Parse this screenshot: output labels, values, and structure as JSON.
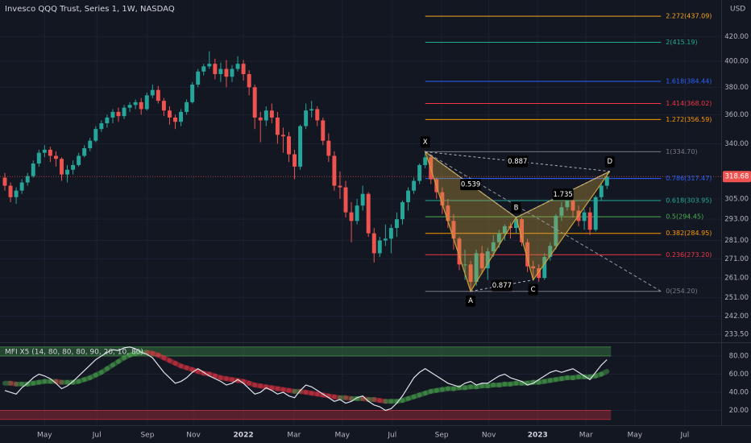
{
  "chart_data": {
    "type": "candlestick",
    "title": "Invesco QQQ Trust, Series 1, 1W, NASDAQ",
    "currency": "USD",
    "log_scale": true,
    "grid": true,
    "up_color": "#26a69a",
    "down_color": "#ef5350",
    "xlim": [
      -0.85,
      126.1
    ],
    "xticks": [
      {
        "value": 7,
        "label": "May"
      },
      {
        "value": 16.2,
        "label": "Jul"
      },
      {
        "value": 25.1,
        "label": "Sep"
      },
      {
        "value": 33.2,
        "label": "Nov"
      },
      {
        "value": 42,
        "label": "2022"
      },
      {
        "value": 50.9,
        "label": "Mar"
      },
      {
        "value": 59.4,
        "label": "May"
      },
      {
        "value": 68.2,
        "label": "Jul"
      },
      {
        "value": 76.9,
        "label": "Sep"
      },
      {
        "value": 85.2,
        "label": "Nov"
      },
      {
        "value": 93.8,
        "label": "2023"
      },
      {
        "value": 102.3,
        "label": "Mar"
      },
      {
        "value": 110.9,
        "label": "May"
      },
      {
        "value": 119.7,
        "label": "Jul"
      }
    ],
    "ylim": [
      229.9,
      451.3
    ],
    "yticks": [
      {
        "value": 420,
        "label": "420.00"
      },
      {
        "value": 400,
        "label": "400.00"
      },
      {
        "value": 380,
        "label": "380.00"
      },
      {
        "value": 360,
        "label": "360.00"
      },
      {
        "value": 340,
        "label": "340.00"
      },
      {
        "value": 305,
        "label": "305.00"
      },
      {
        "value": 293,
        "label": "293.00"
      },
      {
        "value": 281,
        "label": "281.00"
      },
      {
        "value": 271,
        "label": "271.00"
      },
      {
        "value": 261,
        "label": "261.00"
      },
      {
        "value": 251,
        "label": "251.00"
      },
      {
        "value": 242,
        "label": "242.00"
      },
      {
        "value": 233.5,
        "label": "233.50"
      }
    ],
    "ohlc": [
      [
        318,
        321,
        310,
        313
      ],
      [
        313,
        315,
        303,
        306
      ],
      [
        306,
        312,
        302,
        310
      ],
      [
        310,
        317,
        308,
        315
      ],
      [
        315,
        321,
        313,
        319
      ],
      [
        319,
        329,
        318,
        327
      ],
      [
        327,
        336,
        325,
        334
      ],
      [
        334,
        339,
        331,
        336
      ],
      [
        336,
        338,
        328,
        332
      ],
      [
        332,
        335,
        325,
        330
      ],
      [
        330,
        331,
        316,
        320
      ],
      [
        320,
        326,
        315,
        323
      ],
      [
        323,
        329,
        320,
        326
      ],
      [
        326,
        334,
        325,
        332
      ],
      [
        332,
        339,
        331,
        337
      ],
      [
        337,
        344,
        335,
        342
      ],
      [
        342,
        352,
        341,
        350
      ],
      [
        350,
        356,
        348,
        354
      ],
      [
        354,
        360,
        351,
        358
      ],
      [
        358,
        364,
        354,
        362
      ],
      [
        362,
        365,
        355,
        359
      ],
      [
        359,
        367,
        357,
        365
      ],
      [
        365,
        369,
        362,
        367
      ],
      [
        367,
        371,
        364,
        369
      ],
      [
        369,
        372,
        360,
        364
      ],
      [
        364,
        376,
        363,
        374
      ],
      [
        374,
        382,
        372,
        378
      ],
      [
        378,
        381,
        368,
        370
      ],
      [
        370,
        372,
        359,
        363
      ],
      [
        363,
        366,
        353,
        358
      ],
      [
        358,
        360,
        350,
        355
      ],
      [
        355,
        364,
        352,
        362
      ],
      [
        362,
        371,
        360,
        369
      ],
      [
        369,
        384,
        368,
        382
      ],
      [
        382,
        394,
        380,
        392
      ],
      [
        392,
        398,
        389,
        396
      ],
      [
        396,
        408,
        394,
        398
      ],
      [
        398,
        402,
        386,
        390
      ],
      [
        390,
        399,
        384,
        394
      ],
      [
        394,
        401,
        380,
        388
      ],
      [
        388,
        397,
        384,
        394
      ],
      [
        394,
        404,
        392,
        398
      ],
      [
        398,
        401,
        385,
        390
      ],
      [
        390,
        393,
        374,
        380
      ],
      [
        380,
        382,
        350,
        358
      ],
      [
        358,
        362,
        341,
        356
      ],
      [
        356,
        366,
        352,
        363
      ],
      [
        363,
        368,
        354,
        358
      ],
      [
        358,
        362,
        340,
        346
      ],
      [
        346,
        351,
        334,
        345
      ],
      [
        345,
        348,
        328,
        333
      ],
      [
        333,
        336,
        317,
        325
      ],
      [
        325,
        353,
        323,
        352
      ],
      [
        352,
        368,
        350,
        363
      ],
      [
        363,
        370,
        358,
        364
      ],
      [
        364,
        366,
        352,
        356
      ],
      [
        356,
        358,
        339,
        342
      ],
      [
        342,
        347,
        328,
        332
      ],
      [
        332,
        335,
        310,
        313
      ],
      [
        313,
        322,
        305,
        312
      ],
      [
        312,
        316,
        294,
        297
      ],
      [
        297,
        303,
        280,
        292
      ],
      [
        292,
        305,
        290,
        301
      ],
      [
        301,
        313,
        298,
        308
      ],
      [
        308,
        309,
        283,
        285
      ],
      [
        285,
        288,
        269,
        274
      ],
      [
        274,
        283,
        272,
        281
      ],
      [
        281,
        290,
        278,
        282
      ],
      [
        282,
        290,
        274,
        288
      ],
      [
        288,
        297,
        283,
        293
      ],
      [
        293,
        304,
        290,
        303
      ],
      [
        303,
        312,
        298,
        310
      ],
      [
        310,
        318,
        308,
        316
      ],
      [
        316,
        327,
        314,
        326
      ],
      [
        326,
        334.7,
        324,
        331
      ],
      [
        331,
        332,
        314,
        317
      ],
      [
        317,
        318,
        305,
        309
      ],
      [
        309,
        312,
        296,
        301
      ],
      [
        301,
        305,
        288,
        292
      ],
      [
        292,
        296,
        276,
        282
      ],
      [
        282,
        283,
        265,
        268
      ],
      [
        268,
        276,
        260,
        268
      ],
      [
        268,
        270,
        254.2,
        259
      ],
      [
        259,
        276,
        257,
        274
      ],
      [
        274,
        278,
        263,
        266
      ],
      [
        266,
        277,
        260,
        275
      ],
      [
        275,
        284,
        272,
        280
      ],
      [
        280,
        287,
        277,
        285
      ],
      [
        285,
        290,
        281,
        289
      ],
      [
        289,
        291,
        282,
        288
      ],
      [
        288,
        294,
        285,
        293
      ],
      [
        293,
        294,
        278,
        280
      ],
      [
        280,
        282,
        264,
        267
      ],
      [
        267,
        270,
        260,
        266
      ],
      [
        266,
        268,
        259,
        261
      ],
      [
        261,
        274,
        260,
        272
      ],
      [
        272,
        280,
        270,
        278
      ],
      [
        278,
        296,
        276,
        295
      ],
      [
        295,
        303,
        292,
        300
      ],
      [
        300,
        307,
        298,
        304
      ],
      [
        304,
        306,
        294,
        298
      ],
      [
        298,
        301,
        289,
        292
      ],
      [
        292,
        299,
        287,
        297
      ],
      [
        297,
        300,
        284,
        287
      ],
      [
        287,
        307,
        286,
        306
      ],
      [
        306,
        315,
        304,
        313
      ],
      [
        313,
        321,
        311,
        318.68
      ]
    ],
    "fib": {
      "range": [
        74,
        115.5
      ],
      "levels": [
        {
          "label": "2.272(437.09)",
          "value": 437.09,
          "color": "#f5a623"
        },
        {
          "label": "2(415.19)",
          "value": 415.19,
          "color": "#22ab94"
        },
        {
          "label": "1.618(384.44)",
          "value": 384.44,
          "color": "#2962ff"
        },
        {
          "label": "1.414(368.02)",
          "value": 368.02,
          "color": "#f23645"
        },
        {
          "label": "1.272(356.59)",
          "value": 356.59,
          "color": "#ff9800"
        },
        {
          "label": "1(334.70)",
          "value": 334.7,
          "color": "#787b86"
        },
        {
          "label": "0.786(317.47)",
          "value": 317.47,
          "color": "#2962ff"
        },
        {
          "label": "0.618(303.95)",
          "value": 303.95,
          "color": "#22ab94"
        },
        {
          "label": "0.5(294.45)",
          "value": 294.45,
          "color": "#4caf50"
        },
        {
          "label": "0.382(284.95)",
          "value": 284.95,
          "color": "#ff9800"
        },
        {
          "label": "0.236(273.20)",
          "value": 273.2,
          "color": "#f23645"
        },
        {
          "label": "0(254.20)",
          "value": 254.2,
          "color": "#787b86"
        }
      ]
    },
    "pattern": {
      "color": "#c9a13c",
      "points": [
        {
          "name": "X",
          "x": 74,
          "value": 334.7
        },
        {
          "name": "A",
          "x": 82,
          "value": 254.2
        },
        {
          "name": "B",
          "x": 90,
          "value": 294
        },
        {
          "name": "C",
          "x": 93,
          "value": 260
        },
        {
          "name": "D",
          "x": 106.5,
          "value": 322
        }
      ],
      "ratios": [
        "0.539",
        "0.877",
        "1.735",
        "0.887"
      ]
    },
    "mfi": {
      "title": "MFI X5 (14, 80, 80, 80, 90, 20, 10, 80)",
      "ylim": [
        3.6,
        95.1
      ],
      "yticks": [
        {
          "value": 80,
          "label": "80.00"
        },
        {
          "value": 60,
          "label": "60.00"
        },
        {
          "value": 40,
          "label": "40.00"
        },
        {
          "value": 20,
          "label": "20.00"
        }
      ],
      "bands": [
        {
          "range": [
            80,
            90
          ],
          "color": "#4caf50"
        },
        {
          "range": [
            10,
            20
          ],
          "color": "#f23645"
        }
      ],
      "color": "#e0e3eb",
      "up_color": "#4caf50",
      "down_color": "#f23645",
      "values": [
        42,
        40,
        38,
        45,
        50,
        56,
        60,
        58,
        55,
        50,
        44,
        47,
        52,
        58,
        64,
        70,
        76,
        80,
        84,
        87,
        86,
        89,
        90,
        88,
        84,
        82,
        78,
        70,
        62,
        56,
        50,
        52,
        56,
        62,
        66,
        62,
        58,
        55,
        52,
        48,
        50,
        54,
        50,
        44,
        38,
        40,
        45,
        42,
        38,
        40,
        36,
        34,
        42,
        48,
        46,
        42,
        38,
        34,
        30,
        32,
        28,
        30,
        34,
        36,
        30,
        26,
        24,
        20,
        22,
        28,
        36,
        46,
        56,
        62,
        66,
        62,
        58,
        54,
        50,
        48,
        46,
        50,
        52,
        48,
        50,
        50,
        54,
        58,
        60,
        56,
        54,
        52,
        48,
        50,
        54,
        58,
        62,
        64,
        62,
        64,
        66,
        62,
        58,
        54,
        62,
        70,
        76
      ],
      "signal": [
        50,
        50,
        49,
        49,
        49,
        50,
        51,
        52,
        52,
        52,
        51,
        51,
        51,
        52,
        54,
        56,
        59,
        62,
        66,
        70,
        74,
        78,
        81,
        83,
        84,
        84,
        83,
        81,
        78,
        75,
        72,
        69,
        67,
        65,
        63,
        61,
        60,
        58,
        56,
        55,
        54,
        53,
        52,
        50,
        48,
        47,
        46,
        45,
        44,
        43,
        42,
        41,
        41,
        40,
        39,
        38,
        37,
        36,
        35,
        34,
        34,
        33,
        33,
        33,
        32,
        32,
        31,
        30,
        30,
        30,
        31,
        33,
        35,
        37,
        39,
        41,
        42,
        43,
        44,
        44,
        45,
        45,
        46,
        46,
        47,
        47,
        48,
        48,
        49,
        49,
        50,
        50,
        50,
        51,
        51,
        52,
        53,
        54,
        55,
        56,
        56,
        57,
        57,
        57,
        58,
        60,
        63
      ]
    }
  }
}
